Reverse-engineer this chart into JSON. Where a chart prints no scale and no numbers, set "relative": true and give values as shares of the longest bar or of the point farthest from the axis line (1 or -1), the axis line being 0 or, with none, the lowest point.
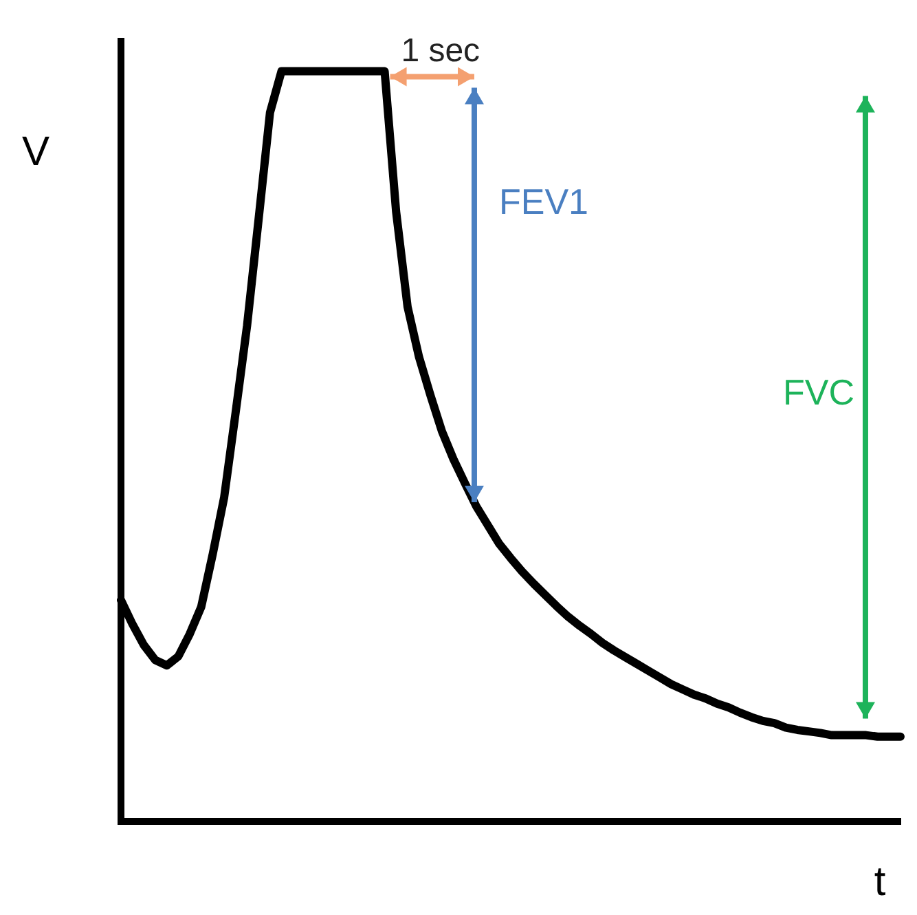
{
  "chart_data": {
    "type": "line",
    "relative": true,
    "xlabel": "t",
    "ylabel": "V",
    "tick_labels": false,
    "grid": false,
    "legend": false,
    "marker": "none",
    "line_style": "solid",
    "categories": [
      null,
      null,
      null,
      null,
      null,
      null,
      null,
      null,
      null,
      null,
      null,
      null,
      null,
      null,
      null,
      null,
      null,
      null,
      null,
      null,
      null,
      null,
      null,
      null,
      null,
      null,
      null,
      null,
      null,
      null,
      null,
      null,
      null,
      null,
      null,
      null,
      null,
      null,
      null,
      null,
      null,
      null,
      null,
      null,
      null,
      null,
      null,
      null,
      null,
      null,
      null,
      null,
      null,
      null,
      null,
      null,
      null,
      null,
      null,
      null,
      null,
      null,
      null,
      null,
      null,
      null,
      null,
      null,
      null
    ],
    "series": [
      {
        "color": "#000000",
        "values": [
          0.295,
          0.263,
          0.235,
          0.215,
          0.208,
          0.22,
          0.25,
          0.286,
          0.356,
          0.432,
          0.545,
          0.661,
          0.802,
          0.945,
          1,
          1,
          1,
          1,
          1,
          1,
          1,
          1,
          1,
          1,
          0.813,
          0.686,
          0.619,
          0.568,
          0.52,
          0.483,
          0.451,
          0.42,
          0.395,
          0.37,
          0.351,
          0.333,
          0.317,
          0.302,
          0.287,
          0.273,
          0.261,
          0.25,
          0.238,
          0.228,
          0.219,
          0.21,
          0.201,
          0.192,
          0.183,
          0.176,
          0.169,
          0.164,
          0.157,
          0.152,
          0.145,
          0.139,
          0.134,
          0.131,
          0.125,
          0.122,
          0.12,
          0.118,
          0.115,
          0.115,
          0.115,
          0.115,
          0.113,
          0.113,
          0.113
        ]
      }
    ],
    "annotations": [
      "1 sec",
      "FEV1",
      "FVC"
    ]
  }
}
